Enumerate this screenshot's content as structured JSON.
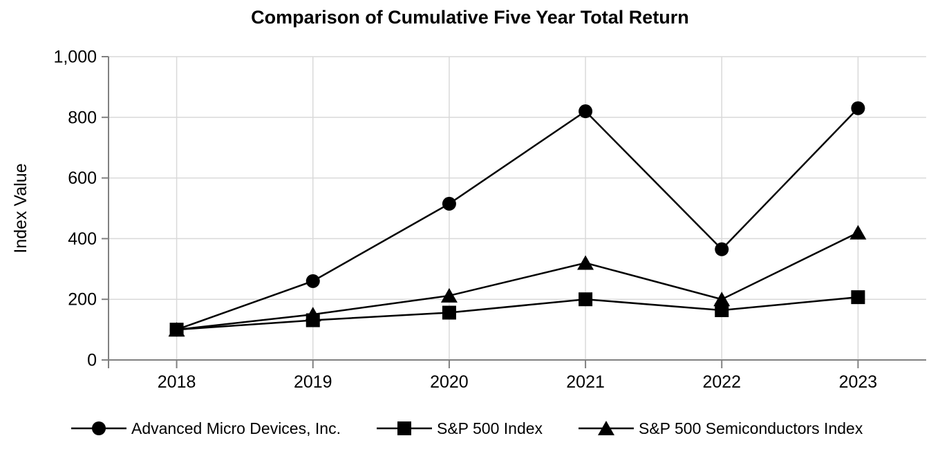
{
  "chart_data": {
    "type": "line",
    "title": "Comparison of Cumulative Five Year Total Return",
    "xlabel": "",
    "ylabel": "Index Value",
    "x_categories": [
      "2018",
      "2019",
      "2020",
      "2021",
      "2022",
      "2023"
    ],
    "series": [
      {
        "name": "Advanced Micro Devices, Inc.",
        "marker": "circle",
        "color": "#000000",
        "values": [
          100,
          260,
          515,
          820,
          365,
          830
        ]
      },
      {
        "name": "S&P 500 Index",
        "marker": "square",
        "color": "#000000",
        "values": [
          100,
          131,
          156,
          200,
          164,
          207
        ]
      },
      {
        "name": "S&P 500 Semiconductors Index",
        "marker": "triangle",
        "color": "#000000",
        "values": [
          100,
          150,
          212,
          320,
          200,
          420
        ]
      }
    ],
    "ylim": [
      0,
      1000
    ],
    "yticks": [
      0,
      200,
      400,
      600,
      800,
      1000
    ],
    "ytick_labels": [
      "0",
      "200",
      "400",
      "600",
      "800",
      "1,000"
    ],
    "grid": true,
    "legend_position": "bottom",
    "draw_order": [
      0,
      2,
      1
    ],
    "colors": {
      "axis": "#808080",
      "grid": "#d9d9d9",
      "text": "#000000",
      "series": "#000000",
      "background": "#ffffff"
    }
  }
}
